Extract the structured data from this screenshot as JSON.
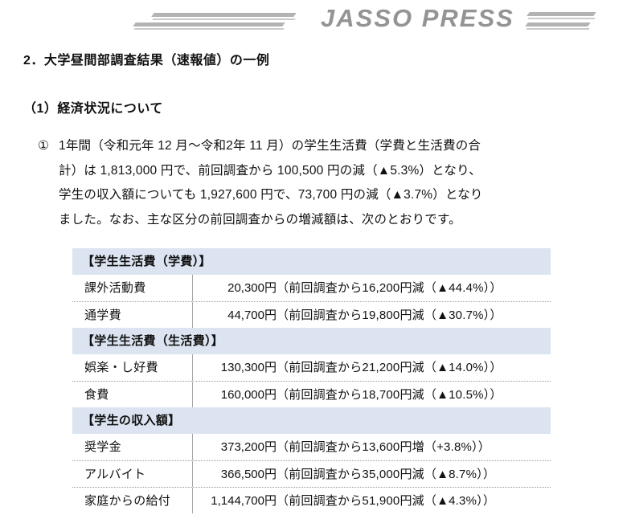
{
  "header": {
    "brand": "JASSO PRESS"
  },
  "section_title": "2．大学昼間部調査結果（速報値）の一例",
  "subsection_title": "（1）経済状況について",
  "paragraph": {
    "marker": "①",
    "lines": [
      "1年間（令和元年 12 月～令和2年 11 月）の学生生活費（学費と生活費の合",
      "計）は 1,813,000 円で、前回調査から 100,500 円の減（▲5.3%）となり、",
      "学生の収入額についても 1,927,600 円で、73,700 円の減（▲3.7%）となり",
      "ました。なお、主な区分の前回調査からの増減額は、次のとおりです。"
    ]
  },
  "table": {
    "rows": [
      {
        "type": "header",
        "label": "【学生生活費（学費）】"
      },
      {
        "type": "data",
        "label": "課外活動費",
        "amount": "20,300円",
        "note": "（前回調査から16,200円減（▲44.4%））"
      },
      {
        "type": "data",
        "label": "通学費",
        "amount": "44,700円",
        "note": "（前回調査から19,800円減（▲30.7%））"
      },
      {
        "type": "header",
        "label": "【学生生活費（生活費）】"
      },
      {
        "type": "data",
        "label": "娯楽・し好費",
        "amount": "130,300円",
        "note": "（前回調査から21,200円減（▲14.0%））"
      },
      {
        "type": "data",
        "label": "食費",
        "amount": "160,000円",
        "note": "（前回調査から18,700円減（▲10.5%））"
      },
      {
        "type": "header",
        "label": "【学生の収入額】"
      },
      {
        "type": "data",
        "label": "奨学金",
        "amount": "373,200円",
        "note": "（前回調査から13,600円増（+3.8%））"
      },
      {
        "type": "data",
        "label": "アルバイト",
        "amount": "366,500円",
        "note": "（前回調査から35,000円減（▲8.7%））"
      },
      {
        "type": "data",
        "label": "家庭からの給付",
        "amount": "1,144,700円",
        "note": "（前回調査から51,900円減（▲4.3%））"
      }
    ]
  },
  "colors": {
    "header_row_bg": "#dbe4f0",
    "brand_gray": "#949494",
    "text": "#111111",
    "column_divider": "#a6a6a6"
  }
}
